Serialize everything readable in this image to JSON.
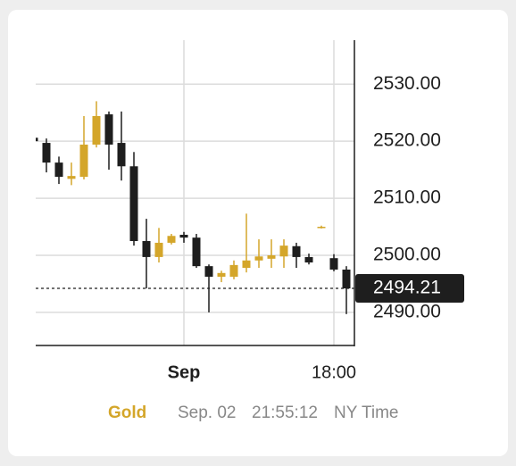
{
  "chart_data": {
    "type": "candlestick",
    "categories": [
      null,
      null,
      null,
      null,
      null,
      null,
      null,
      null,
      null,
      null,
      null,
      null,
      "Sep",
      null,
      null,
      null,
      null,
      null,
      null,
      null,
      null,
      null,
      null,
      null,
      "18:00",
      null
    ],
    "open": [
      2520.6,
      2519.7,
      2516.25,
      2513.4,
      2513.75,
      2519.4,
      2524.7,
      2519.7,
      2515.6,
      2502.5,
      2499.7,
      2502.2,
      2503.6,
      2503.1,
      2498.1,
      2496.25,
      2496.25,
      2497.8,
      2499.1,
      2499.4,
      2499.8,
      2501.6,
      2499.7,
      2504.8,
      2499.5,
      2497.5
    ],
    "high": [
      2521.0,
      2520.47,
      2517.3,
      2516.25,
      2524.4,
      2527.0,
      2525.2,
      2525.2,
      2518.1,
      2506.4,
      2504.8,
      2503.75,
      2504.1,
      2503.75,
      2498.4,
      2497.3,
      2499.1,
      2507.3,
      2502.8,
      2502.8,
      2502.8,
      2502.2,
      2500.3,
      2505.2,
      2500.2,
      2498.1
    ],
    "low": [
      2519.5,
      2514.53,
      2512.5,
      2512.3,
      2513.3,
      2518.9,
      2515.0,
      2513.1,
      2501.7,
      2494.2,
      2498.75,
      2501.9,
      2502.2,
      2497.8,
      2490.0,
      2495.3,
      2495.8,
      2497.0,
      2497.8,
      2497.8,
      2497.8,
      2497.8,
      2498.4,
      2504.7,
      2497.2,
      2489.7
    ],
    "close": [
      2520.0,
      2516.25,
      2513.75,
      2513.9,
      2519.4,
      2524.4,
      2519.4,
      2515.6,
      2502.5,
      2499.7,
      2502.2,
      2503.4,
      2503.1,
      2498.1,
      2496.25,
      2496.9,
      2498.3,
      2499.1,
      2499.8,
      2500.0,
      2501.7,
      2499.7,
      2498.75,
      2505.0,
      2497.5,
      2494.2
    ],
    "up_color": "#d4a62a",
    "down_color": "#1e1e1e",
    "ylim": [
      2484.2,
      2537.7
    ],
    "yticks": [
      {
        "value": 2490,
        "label": "2490.00"
      },
      {
        "value": 2500,
        "label": "2500.00"
      },
      {
        "value": 2510,
        "label": "2510.00"
      },
      {
        "value": 2520,
        "label": "2520.00"
      },
      {
        "value": 2530,
        "label": "2530.00"
      }
    ],
    "last_price": 2494.21,
    "grid": true
  },
  "footer": {
    "symbol": "Gold",
    "date": "Sep. 02",
    "time": "21:55:12",
    "timezone": "NY Time"
  }
}
